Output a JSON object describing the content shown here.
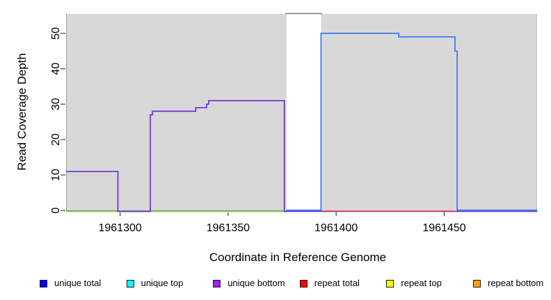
{
  "chart_data": {
    "type": "line",
    "subtype": "step-coverage",
    "title": "",
    "xlabel": "Coordinate in Reference Genome",
    "ylabel": "Read Coverage Depth",
    "xlim": [
      1961275,
      1961493
    ],
    "ylim": [
      0,
      55.5
    ],
    "x_ticks": [
      1961300,
      1961350,
      1961400,
      1961450
    ],
    "y_ticks": [
      0,
      10,
      20,
      30,
      40,
      50
    ],
    "grid": false,
    "plot_background_color": "#d8d8d8",
    "offscale_gap_region": {
      "x_start": 1961377,
      "x_end": 1961393,
      "note": "white band where coverage exceeds y-axis limit; clipped dark line drawn at top"
    },
    "series": [
      {
        "name": "zero-baseline-pale-yellow",
        "color": "#ece7a6",
        "width": 1.5,
        "step_points": [
          [
            1961275,
            0
          ],
          [
            1961377,
            0
          ]
        ]
      },
      {
        "name": "zero-baseline-green",
        "color": "#46ab46",
        "width": 1.5,
        "step_points": [
          [
            1961275,
            0
          ],
          [
            1961377,
            0
          ]
        ]
      },
      {
        "name": "unique-bottom",
        "color": "#7337d9",
        "width": 1.8,
        "step_points": [
          [
            1961275,
            11
          ],
          [
            1961299,
            11
          ],
          [
            1961299,
            0
          ],
          [
            1961314,
            0
          ],
          [
            1961314,
            27
          ],
          [
            1961315,
            27
          ],
          [
            1961315,
            28
          ],
          [
            1961335,
            28
          ],
          [
            1961335,
            29
          ],
          [
            1961340,
            29
          ],
          [
            1961340,
            30
          ],
          [
            1961341,
            30
          ],
          [
            1961341,
            31
          ],
          [
            1961376,
            31
          ],
          [
            1961376,
            0
          ],
          [
            1961493,
            0
          ]
        ]
      },
      {
        "name": "repeat-total-baseline",
        "color": "#e02e4d",
        "width": 1.5,
        "step_points": [
          [
            1961393,
            0
          ],
          [
            1961455,
            0
          ]
        ]
      },
      {
        "name": "unique-total",
        "color": "#3e7bf2",
        "width": 1.8,
        "step_points": [
          [
            1961377,
            0
          ],
          [
            1961393,
            0
          ],
          [
            1961393,
            50
          ],
          [
            1961429,
            50
          ],
          [
            1961429,
            49
          ],
          [
            1961455,
            49
          ],
          [
            1961455,
            45
          ],
          [
            1961456,
            45
          ],
          [
            1961456,
            0
          ],
          [
            1961493,
            0
          ]
        ]
      },
      {
        "name": "offscale-clipped-total",
        "color": "#787878",
        "width": 1.6,
        "step_points": [
          [
            1961376.5,
            55.6
          ],
          [
            1961393.5,
            55.6
          ]
        ]
      }
    ],
    "legend_position": "bottom"
  },
  "legend": {
    "items": [
      {
        "label": "unique total",
        "color": "#0000ff"
      },
      {
        "label": "unique top",
        "color": "#00ffff"
      },
      {
        "label": "unique bottom",
        "color": "#a020f0"
      },
      {
        "label": "repeat total",
        "color": "#ff0000"
      },
      {
        "label": "repeat top",
        "color": "#ffff00"
      },
      {
        "label": "repeat bottom",
        "color": "#ffa500"
      }
    ]
  }
}
